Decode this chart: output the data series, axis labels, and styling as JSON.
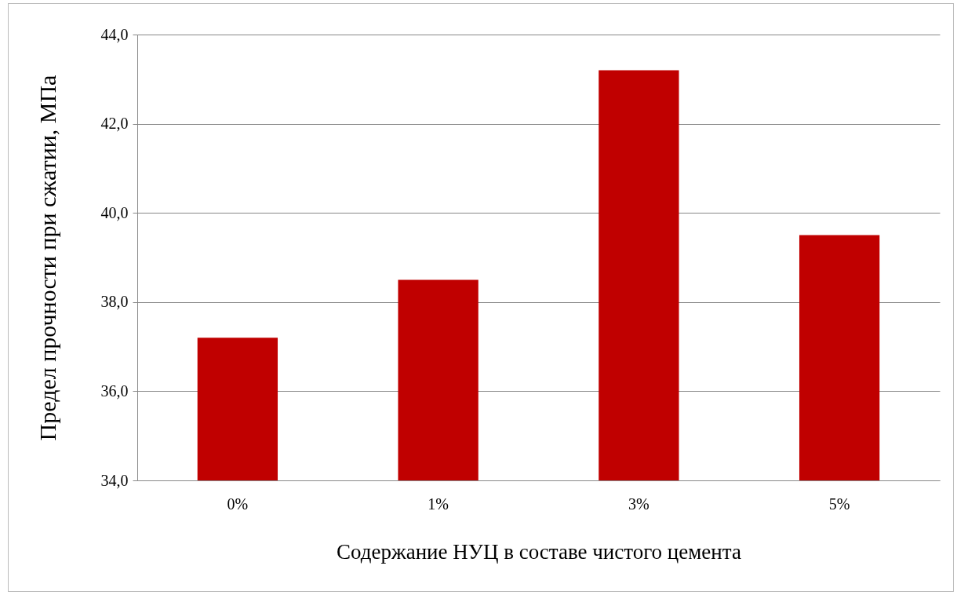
{
  "chart_data": {
    "type": "bar",
    "xlabel": "Содержание НУЦ в составе чистого цемента",
    "ylabel": "Предел прочности при сжатии, МПа",
    "categories": [
      "0%",
      "1%",
      "3%",
      "5%"
    ],
    "values": [
      37.2,
      38.5,
      43.2,
      39.5
    ],
    "color": "#c00000",
    "ylim": [
      34,
      44
    ],
    "yticks": [
      {
        "value": 34,
        "label": "34,0"
      },
      {
        "value": 36,
        "label": "36,0"
      },
      {
        "value": 38,
        "label": "38,0"
      },
      {
        "value": 40,
        "label": "40,0"
      },
      {
        "value": 42,
        "label": "42,0"
      },
      {
        "value": 44,
        "label": "44,0"
      }
    ],
    "grid": "y"
  }
}
